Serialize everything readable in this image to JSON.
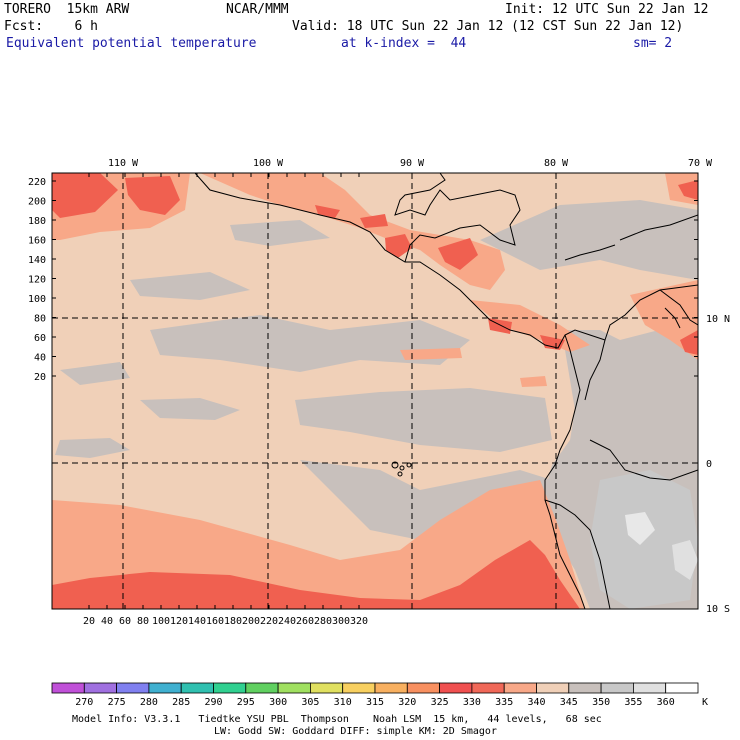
{
  "header": {
    "model": "TORERO  15km ARW",
    "center": "NCAR/MMM",
    "init": "Init: 12 UTC Sun 22 Jan 12",
    "fcst": "Fcst:    6 h",
    "valid": "Valid: 18 UTC Sun 22 Jan 12 (12 CST Sun 22 Jan 12)",
    "field": "Equivalent potential temperature",
    "level": "at k-index =  44",
    "smooth": "sm= 2"
  },
  "map": {
    "lon_labels": [
      "110 W",
      "100 W",
      "90 W",
      "80 W",
      "70 W"
    ],
    "lat_labels": [
      "10 N",
      "0",
      "10 S"
    ],
    "y_ticks": [
      "220",
      "200",
      "180",
      "160",
      "140",
      "120",
      "100",
      "80",
      "60",
      "40",
      "20"
    ],
    "x_ticks": [
      "20",
      "40",
      "60",
      "80",
      "100",
      "120",
      "140",
      "160",
      "180",
      "200",
      "220",
      "240",
      "260",
      "280",
      "300",
      "320"
    ]
  },
  "colorbar": {
    "levels": [
      "270",
      "275",
      "280",
      "285",
      "290",
      "295",
      "300",
      "305",
      "310",
      "315",
      "320",
      "325",
      "330",
      "335",
      "340",
      "345",
      "350",
      "355",
      "360"
    ],
    "unit": "K",
    "colors": [
      "#c050d8",
      "#a070e0",
      "#8080f0",
      "#40b0d0",
      "#30c0b0",
      "#30d090",
      "#60d060",
      "#a0e060",
      "#e0e060",
      "#f8d060",
      "#f8b060",
      "#f89060",
      "#f05050",
      "#f06858",
      "#f8a888",
      "#f0d0b8",
      "#c8c0bc",
      "#c8c8c8",
      "#e0e0e0",
      "#ffffff"
    ]
  },
  "footer": {
    "line1": "Model Info: V3.3.1   Tiedtke YSU PBL  Thompson    Noah LSM  15 km,   44 levels,   68 sec",
    "line2": "LW: Godd SW: Goddard DIFF: simple KM: 2D Smagor"
  }
}
